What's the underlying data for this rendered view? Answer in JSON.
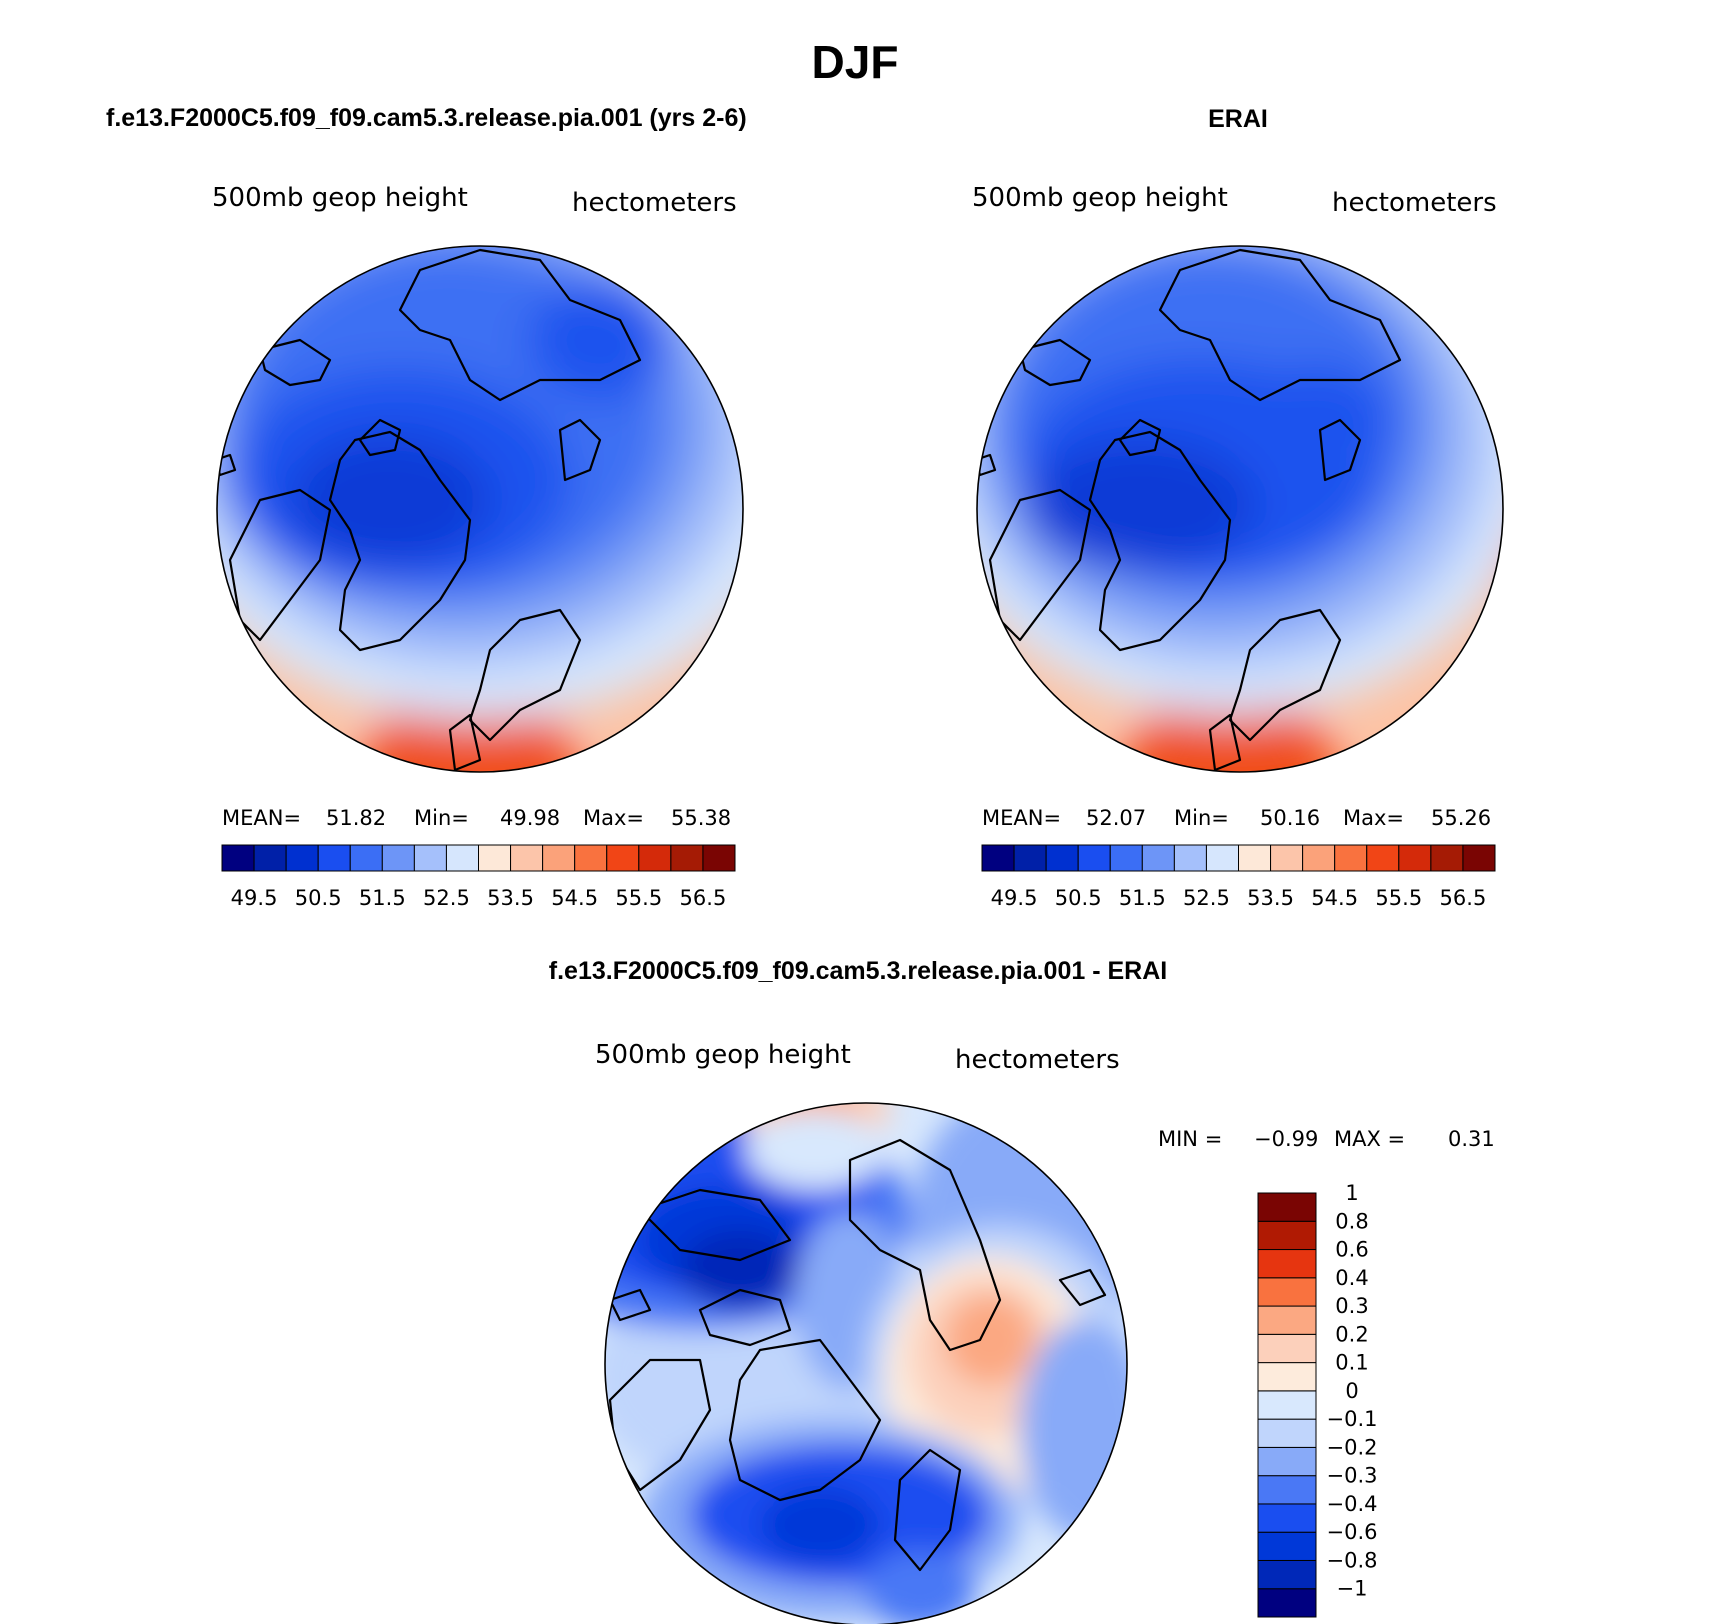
{
  "title": "DJF",
  "panels": [
    {
      "id": "model",
      "case_title": "f.e13.F2000C5.f09_f09.cam5.3.release.pia.001 (yrs 2-6)",
      "variable": "500mb geop height",
      "units": "hectometers",
      "stats": {
        "mean_label": "MEAN=",
        "mean": "51.82",
        "min_label": "Min=",
        "min": "49.98",
        "max_label": "Max=",
        "max": "55.38"
      }
    },
    {
      "id": "obs",
      "case_title": "ERAI",
      "variable": "500mb geop height",
      "units": "hectometers",
      "stats": {
        "mean_label": "MEAN=",
        "mean": "52.07",
        "min_label": "Min=",
        "min": "50.16",
        "max_label": "Max=",
        "max": "55.26"
      }
    }
  ],
  "abs_colorbar": {
    "colors": [
      "#000080",
      "#0020a8",
      "#0030d0",
      "#1a4ef0",
      "#3b6ef5",
      "#6d95f7",
      "#a5c0fb",
      "#d6e6fd",
      "#fde8d8",
      "#fcc5aa",
      "#fba27a",
      "#f9723f",
      "#f14516",
      "#d42a0a",
      "#a51b05",
      "#7a0503"
    ],
    "labels": [
      "49.5",
      "50.5",
      "51.5",
      "52.5",
      "53.5",
      "54.5",
      "55.5",
      "56.5"
    ]
  },
  "diff_panel": {
    "case_title": "f.e13.F2000C5.f09_f09.cam5.3.release.pia.001 - ERAI",
    "variable": "500mb geop height",
    "units": "hectometers",
    "stats": {
      "min_label": "MIN =",
      "min": "−0.99",
      "max_label": "MAX =",
      "max": "0.31"
    },
    "colorbar": {
      "colors": [
        "#000080",
        "#0028b8",
        "#0038d8",
        "#1a4ef0",
        "#4a78f5",
        "#88aaf8",
        "#c0d5fc",
        "#d8e8fd",
        "#fdebdc",
        "#fcd0bb",
        "#fba882",
        "#f9723f",
        "#e63510",
        "#b01a03",
        "#7a0503"
      ],
      "labels": [
        "−1",
        "−0.8",
        "−0.6",
        "−0.4",
        "−0.3",
        "−0.2",
        "−0.1",
        "0",
        "0.1",
        "0.2",
        "0.3",
        "0.4",
        "0.6",
        "0.8",
        "1"
      ]
    }
  }
}
